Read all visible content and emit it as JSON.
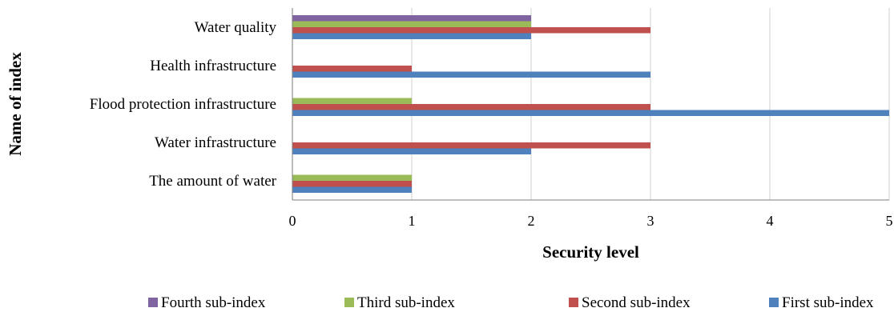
{
  "chart_data": {
    "type": "bar",
    "orientation": "horizontal",
    "categories": [
      "The amount of water",
      "Water infrastructure",
      "Flood protection infrastructure",
      "Health infrastructure",
      "Water quality"
    ],
    "series": [
      {
        "name": "First sub-index",
        "color": "#4F81BD",
        "values": [
          1,
          2,
          5,
          3,
          2
        ]
      },
      {
        "name": "Second sub-index",
        "color": "#C0504D",
        "values": [
          1,
          3,
          3,
          1,
          3
        ]
      },
      {
        "name": "Third sub-index",
        "color": "#9BBB59",
        "values": [
          1,
          0,
          1,
          0,
          2
        ]
      },
      {
        "name": "Fourth sub-index",
        "color": "#8064A2",
        "values": [
          0,
          0,
          0,
          0,
          2
        ]
      }
    ],
    "xlabel": "Security level",
    "ylabel": "Name of index",
    "xlim": [
      0,
      5
    ],
    "xticks": [
      "0",
      "1",
      "2",
      "3",
      "4",
      "5"
    ],
    "grid": "vertical",
    "legend_position": "bottom",
    "legend_order": [
      "Fourth sub-index",
      "Third sub-index",
      "Second sub-index",
      "First sub-index"
    ]
  }
}
